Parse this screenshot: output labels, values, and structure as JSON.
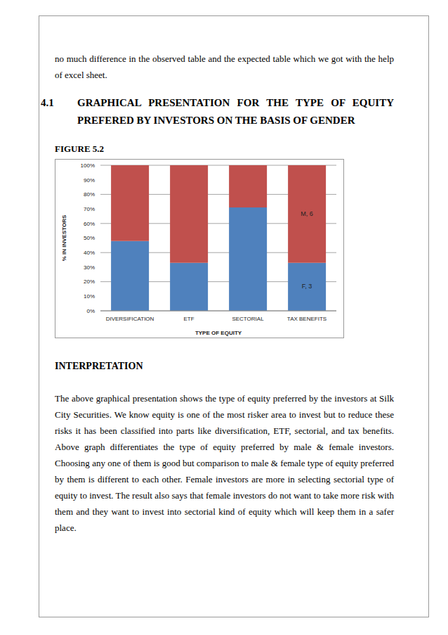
{
  "intro_text": "no much difference in the observed table and the expected table which we got with the help of excel sheet.",
  "heading": {
    "number": "4.1",
    "title": "GRAPHICAL PRESENTATION FOR THE TYPE OF EQUITY PREFERED BY INVESTORS ON THE BASIS OF GENDER"
  },
  "figure_label": "FIGURE 5.2",
  "chart_data": {
    "type": "bar",
    "stacked": true,
    "grid": true,
    "x_label": "TYPE OF EQUITY",
    "y_label": "% IN INVESTORS",
    "categories": [
      "DIVERSIFICATION",
      "ETF",
      "SECTORIAL",
      "TAX BENEFITS"
    ],
    "series": [
      {
        "name": "F",
        "color": "#4f81bd",
        "values": [
          48,
          33,
          71,
          33
        ]
      },
      {
        "name": "M",
        "color": "#c0504d",
        "values": [
          52,
          67,
          29,
          67
        ]
      }
    ],
    "ylim": [
      0,
      100
    ],
    "yticks": [
      {
        "value": 0,
        "label": "0%"
      },
      {
        "value": 10,
        "label": "10%"
      },
      {
        "value": 20,
        "label": "20%"
      },
      {
        "value": 30,
        "label": "30%"
      },
      {
        "value": 40,
        "label": "40%"
      },
      {
        "value": 50,
        "label": "50%"
      },
      {
        "value": 60,
        "label": "60%"
      },
      {
        "value": 70,
        "label": "70%"
      },
      {
        "value": 80,
        "label": "80%"
      },
      {
        "value": 90,
        "label": "90%"
      },
      {
        "value": 100,
        "label": "100%"
      }
    ],
    "annotations": [
      {
        "text": "M, 6",
        "category": "TAX BENEFITS",
        "series": "M"
      },
      {
        "text": "F, 3",
        "category": "TAX BENEFITS",
        "series": "F"
      }
    ]
  },
  "interpretation": {
    "heading": "INTERPRETATION",
    "text": "The above graphical presentation shows the type of equity preferred by the investors at Silk City Securities. We know equity is one of the most risker area to invest but to reduce these risks it has been classified into parts like diversification, ETF, sectorial, and tax benefits. Above graph differentiates the type of equity preferred by male & female investors. Choosing any one of them is good but comparison to male & female type of equity preferred by them is different to each other. Female investors are more in selecting sectorial type of equity to invest. The result also says that female investors do not want to take more risk with them and they want to invest into sectorial kind of equity which will keep them in a safer place."
  }
}
